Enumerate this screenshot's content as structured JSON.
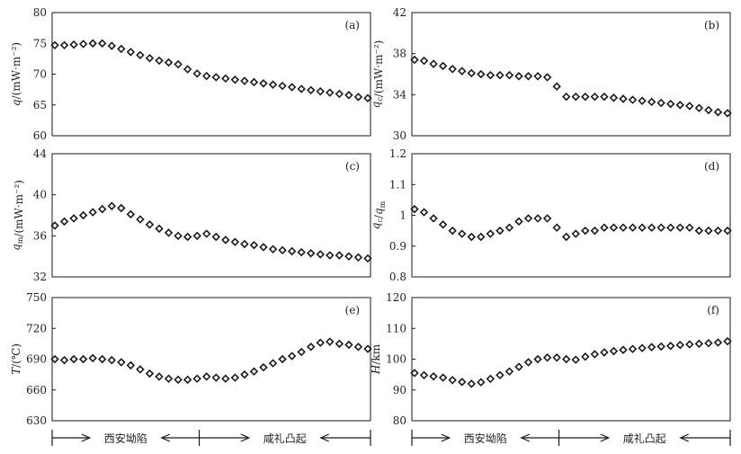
{
  "chart_data": [
    {
      "type": "scatter",
      "panel": "(a)",
      "ylabel": "q/(mW·m⁻²)",
      "ylim": [
        60,
        80
      ],
      "yticks": [
        60,
        65,
        70,
        75,
        80
      ],
      "xlabel": "",
      "values": [
        74.7,
        74.7,
        74.8,
        74.9,
        75.0,
        75.0,
        74.6,
        74.1,
        73.6,
        73.1,
        72.6,
        72.2,
        71.9,
        71.6,
        70.8,
        70.1,
        69.7,
        69.5,
        69.3,
        69.1,
        68.9,
        68.7,
        68.5,
        68.3,
        68.1,
        67.9,
        67.6,
        67.4,
        67.2,
        67.0,
        66.8,
        66.6,
        66.3,
        66.1
      ]
    },
    {
      "type": "scatter",
      "panel": "(b)",
      "ylabel": "qc/(mW·m⁻²)",
      "ylim": [
        30,
        42
      ],
      "yticks": [
        30,
        34,
        38,
        42
      ],
      "xlabel": "",
      "values": [
        37.4,
        37.3,
        37.0,
        36.8,
        36.5,
        36.3,
        36.1,
        36.0,
        35.9,
        35.9,
        35.9,
        35.8,
        35.8,
        35.8,
        35.7,
        34.8,
        33.8,
        33.8,
        33.8,
        33.8,
        33.8,
        33.7,
        33.6,
        33.5,
        33.4,
        33.3,
        33.2,
        33.1,
        33.0,
        32.9,
        32.7,
        32.5,
        32.3,
        32.2
      ]
    },
    {
      "type": "scatter",
      "panel": "(c)",
      "ylabel": "qm/(mW·m⁻²)",
      "ylim": [
        32,
        44
      ],
      "yticks": [
        32,
        36,
        40,
        44
      ],
      "xlabel": "",
      "values": [
        37.0,
        37.4,
        37.7,
        38.0,
        38.3,
        38.6,
        38.9,
        38.7,
        38.1,
        37.6,
        37.1,
        36.7,
        36.3,
        36.0,
        35.9,
        36.0,
        36.2,
        35.9,
        35.6,
        35.4,
        35.2,
        35.1,
        34.9,
        34.7,
        34.6,
        34.5,
        34.4,
        34.3,
        34.2,
        34.1,
        34.1,
        34.0,
        33.9,
        33.8
      ]
    },
    {
      "type": "scatter",
      "panel": "(d)",
      "ylabel": "qc/qm",
      "ylim": [
        0.8,
        1.2
      ],
      "yticks": [
        0.8,
        0.9,
        1.0,
        1.1,
        1.2
      ],
      "xlabel": "",
      "values": [
        1.02,
        1.01,
        0.99,
        0.97,
        0.95,
        0.94,
        0.93,
        0.93,
        0.94,
        0.95,
        0.96,
        0.98,
        0.99,
        0.99,
        0.99,
        0.96,
        0.93,
        0.94,
        0.95,
        0.95,
        0.96,
        0.96,
        0.96,
        0.96,
        0.96,
        0.96,
        0.96,
        0.96,
        0.96,
        0.96,
        0.95,
        0.95,
        0.95,
        0.95
      ]
    },
    {
      "type": "scatter",
      "panel": "(e)",
      "ylabel": "T/(℃)",
      "ylim": [
        630,
        750
      ],
      "yticks": [
        630,
        660,
        690,
        720,
        750
      ],
      "xlabel": "",
      "values": [
        690,
        689,
        690,
        690,
        691,
        690,
        689,
        687,
        684,
        680,
        676,
        673,
        671,
        670,
        670,
        671,
        673,
        672,
        671,
        672,
        675,
        678,
        682,
        686,
        690,
        693,
        697,
        702,
        706,
        707,
        705,
        704,
        702,
        700
      ]
    },
    {
      "type": "scatter",
      "panel": "(f)",
      "ylabel": "H/km",
      "ylim": [
        80,
        120
      ],
      "yticks": [
        80,
        90,
        100,
        110,
        120
      ],
      "xlabel": "",
      "values": [
        95.5,
        94.8,
        94.4,
        94.0,
        93.2,
        92.6,
        92.0,
        92.5,
        93.6,
        94.8,
        96.0,
        97.5,
        99.0,
        100.0,
        100.5,
        100.5,
        100.0,
        99.8,
        100.8,
        101.6,
        102.2,
        102.6,
        103.0,
        103.3,
        103.6,
        103.9,
        104.1,
        104.3,
        104.6,
        104.8,
        105.0,
        105.2,
        105.4,
        105.8
      ]
    }
  ],
  "region_labels": {
    "west": "西安坳陷",
    "east": "咸礼凸起"
  },
  "colors": {
    "marker": "#1a1a1a",
    "axis": "#1a1a1a"
  }
}
